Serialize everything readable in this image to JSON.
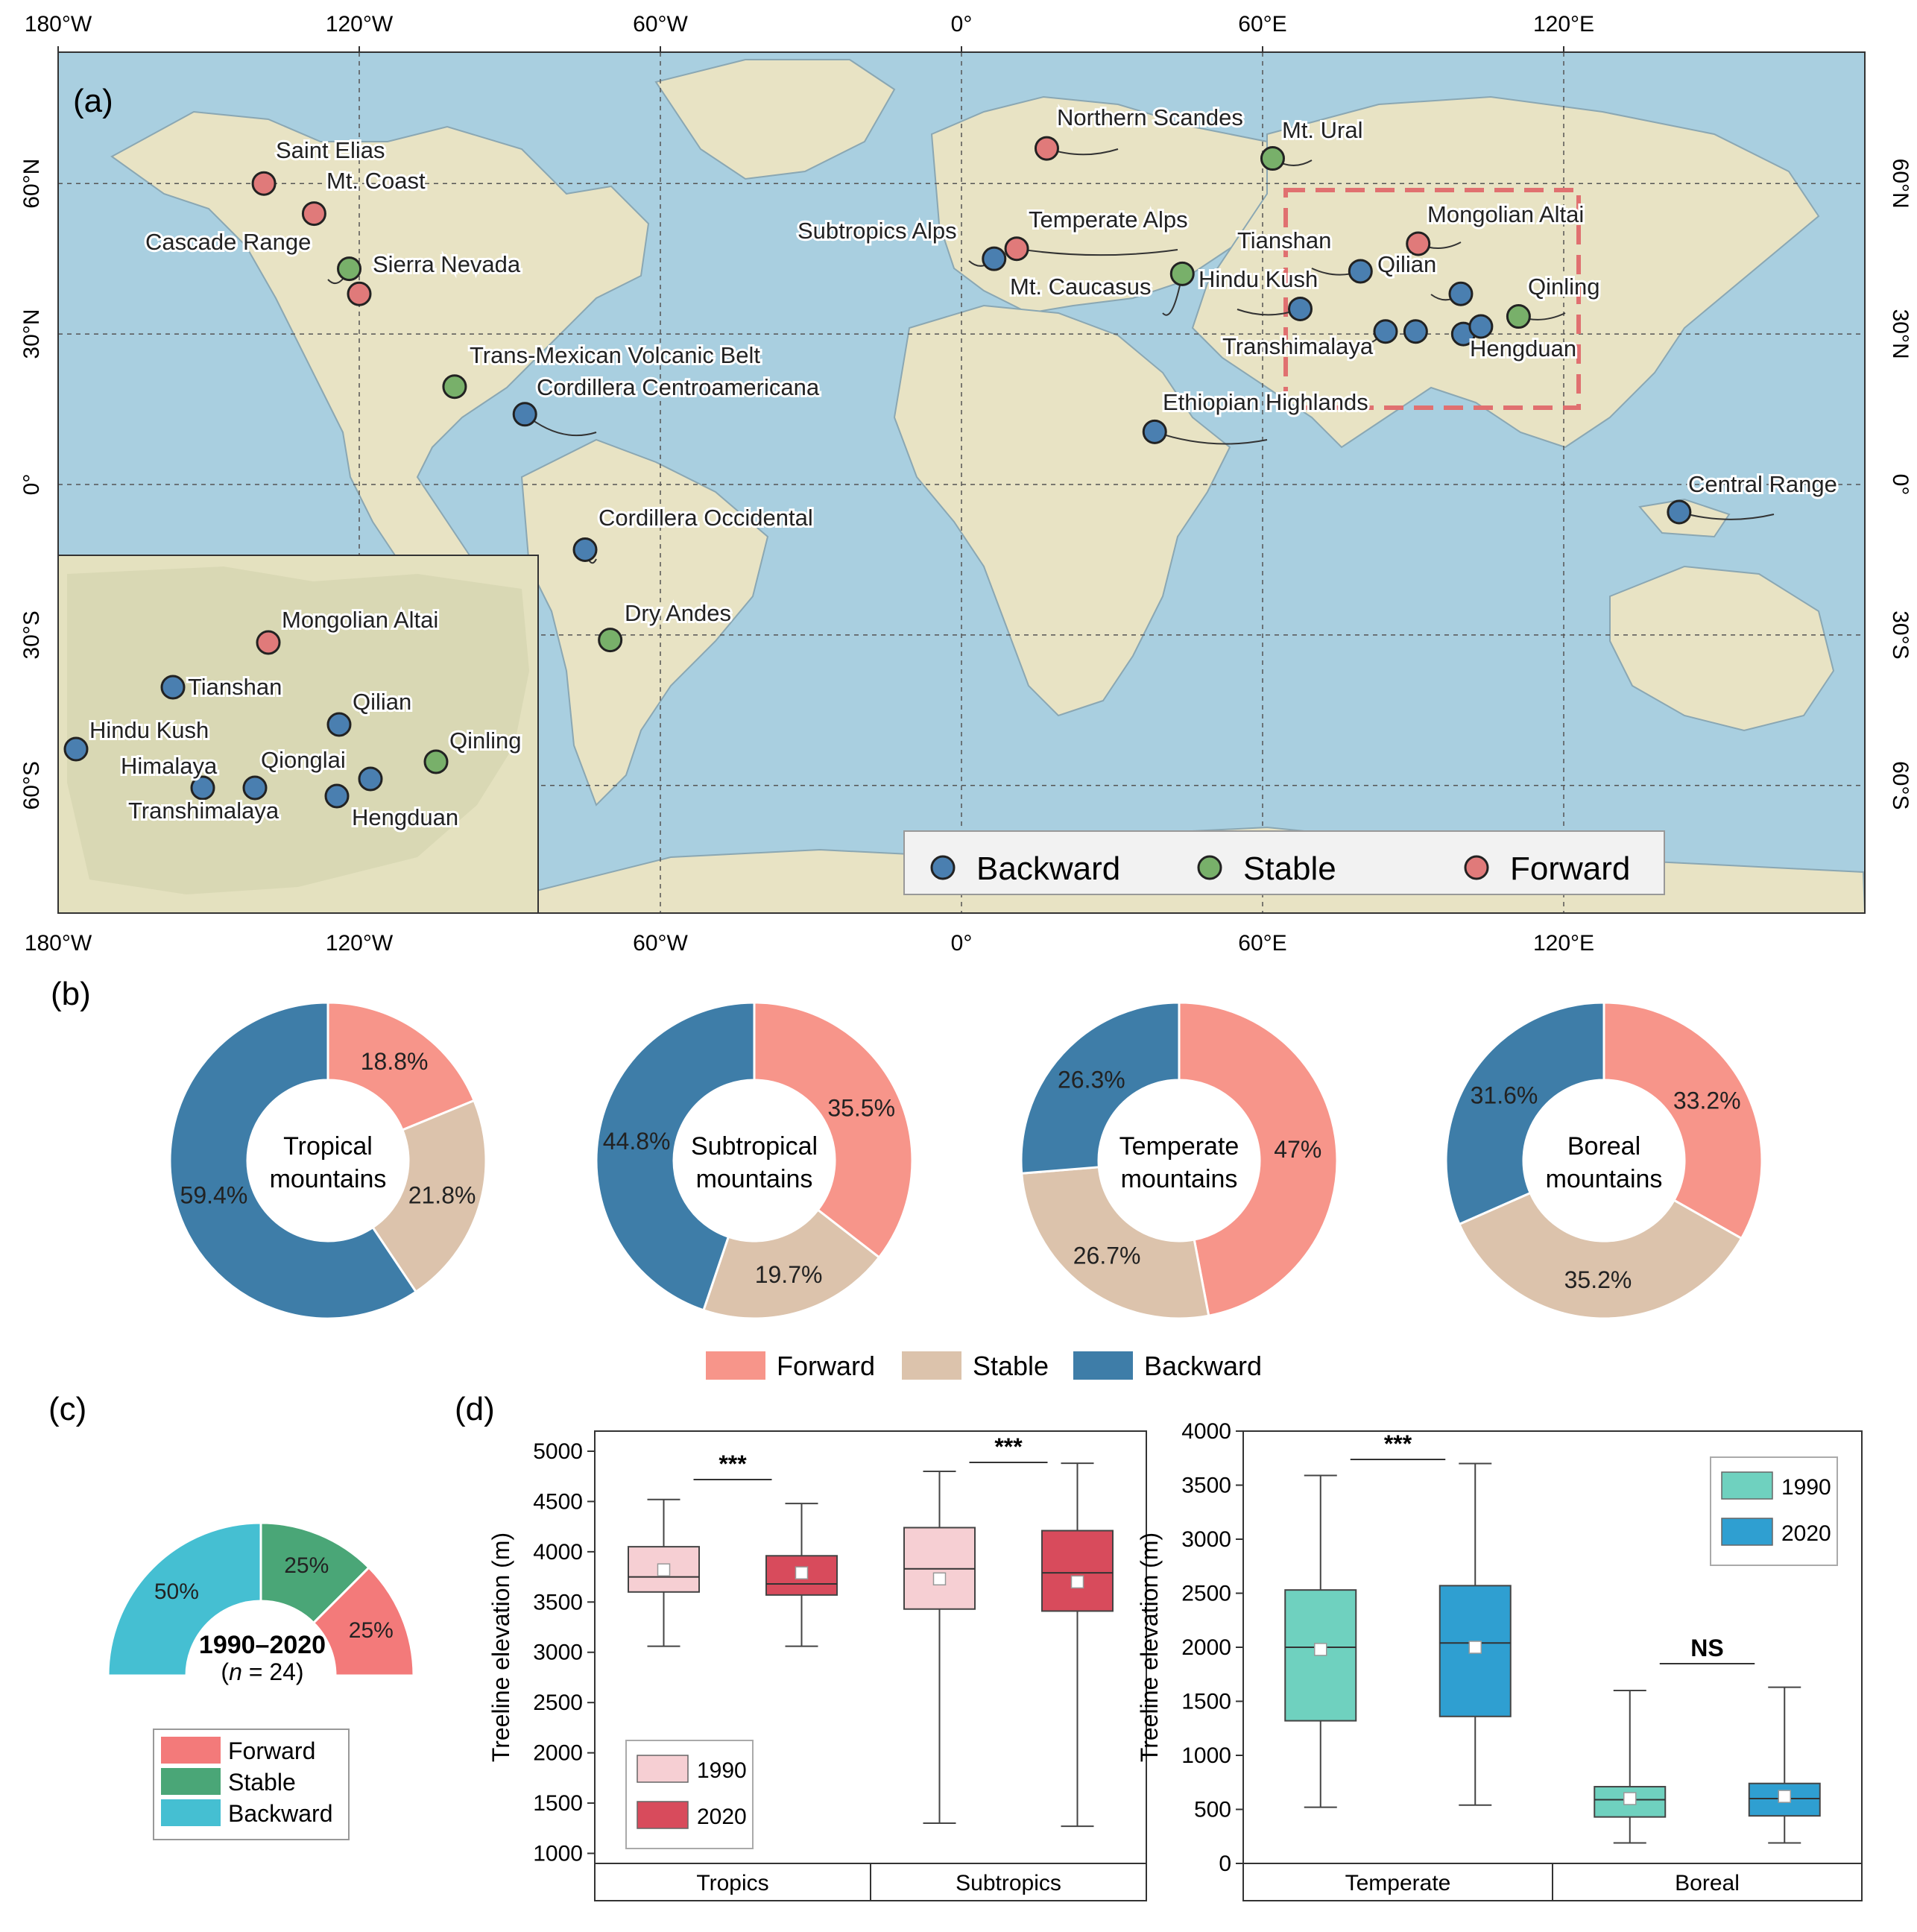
{
  "colors": {
    "backward": "#4a7fb0",
    "stable": "#78b06a",
    "forward": "#e07a7a",
    "ocean": "#a9cfe0",
    "land": "#e8e3c4",
    "pie_forward": "#f7958a",
    "pie_stable": "#dcc3ac",
    "pie_backward": "#3e7da8",
    "c_forward": "#f37a7a",
    "c_stable": "#4aa677",
    "c_backward": "#45bfd2",
    "box_1990_left": "#f6cfd3",
    "box_2020_left": "#d84b5c",
    "box_1990_right": "#6fd1bf",
    "box_2020_right": "#2f9fd1"
  },
  "panel_a": {
    "label": "(a)",
    "top_ticks": [
      "180°W",
      "120°W",
      "60°W",
      "0°",
      "60°E",
      "120°E"
    ],
    "bottom_ticks": [
      "180°W",
      "120°W",
      "60°W",
      "0°",
      "60°E",
      "120°E"
    ],
    "left_ticks": [
      "60°N",
      "30°N",
      "0°",
      "30°S",
      "60°S"
    ],
    "right_ticks": [
      "60°N",
      "30°N",
      "0°",
      "30°S",
      "60°S"
    ],
    "legend": [
      "Backward",
      "Stable",
      "Forward"
    ],
    "sites": [
      {
        "name": "Saint Elias",
        "status": "forward",
        "lon": -139,
        "lat": 60
      },
      {
        "name": "Mt. Coast",
        "status": "forward",
        "lon": -129,
        "lat": 54
      },
      {
        "name": "Cascade Range",
        "status": "stable",
        "lon": -122,
        "lat": 43
      },
      {
        "name": "Sierra Nevada",
        "status": "forward",
        "lon": -120,
        "lat": 38
      },
      {
        "name": "Trans-Mexican Volcanic Belt",
        "status": "stable",
        "lon": -101,
        "lat": 19.5
      },
      {
        "name": "Cordillera Centroamericana",
        "status": "backward",
        "lon": -87,
        "lat": 14
      },
      {
        "name": "Cordillera Occidental",
        "status": "backward",
        "lon": -75,
        "lat": -13
      },
      {
        "name": "Dry Andes",
        "status": "stable",
        "lon": -70,
        "lat": -31
      },
      {
        "name": "Northern Scandes",
        "status": "forward",
        "lon": 17,
        "lat": 67
      },
      {
        "name": "Mt. Ural",
        "status": "stable",
        "lon": 62,
        "lat": 65
      },
      {
        "name": "Subtropics Alps",
        "status": "backward",
        "lon": 6.5,
        "lat": 45
      },
      {
        "name": "Temperate Alps",
        "status": "forward",
        "lon": 11,
        "lat": 47
      },
      {
        "name": "Mt. Caucasus",
        "status": "stable",
        "lon": 44,
        "lat": 42
      },
      {
        "name": "Ethiopian Highlands",
        "status": "backward",
        "lon": 38.5,
        "lat": 10.5
      },
      {
        "name": "Tianshan",
        "status": "backward",
        "lon": 79.5,
        "lat": 42.5
      },
      {
        "name": "Mongolian Altai",
        "status": "forward",
        "lon": 91,
        "lat": 48
      },
      {
        "name": "Qilian",
        "status": "backward",
        "lon": 99.5,
        "lat": 38
      },
      {
        "name": "Hindu Kush",
        "status": "backward",
        "lon": 67.5,
        "lat": 35
      },
      {
        "name": "Qinling",
        "status": "stable",
        "lon": 111,
        "lat": 33.5
      },
      {
        "name": "Transhimalaya",
        "status": "backward",
        "lon": 84.5,
        "lat": 30.5
      },
      {
        "name": "Himalaya",
        "status": "backward",
        "lon": 90.5,
        "lat": 30.5
      },
      {
        "name": "Hengduan",
        "status": "backward",
        "lon": 100,
        "lat": 30
      },
      {
        "name": "Qionglai",
        "status": "backward",
        "lon": 103.5,
        "lat": 31.5
      },
      {
        "name": "Central Range",
        "status": "backward",
        "lon": 143,
        "lat": -5.5
      }
    ],
    "inset_sites": [
      {
        "name": "Mongolian Altai",
        "status": "forward"
      },
      {
        "name": "Tianshan",
        "status": "backward"
      },
      {
        "name": "Qilian",
        "status": "backward"
      },
      {
        "name": "Hindu Kush",
        "status": "backward"
      },
      {
        "name": "Qinling",
        "status": "stable"
      },
      {
        "name": "Himalaya",
        "status": "backward"
      },
      {
        "name": "Qionglai",
        "status": "backward"
      },
      {
        "name": "Transhimalaya",
        "status": "backward"
      },
      {
        "name": "Hengduan",
        "status": "backward"
      }
    ]
  },
  "chart_data": [
    {
      "type": "pie",
      "panel": "(b)",
      "charts": [
        {
          "center": [
            "Tropical",
            "mountains"
          ],
          "forward": 18.8,
          "stable": 21.8,
          "backward": 59.4,
          "labels": [
            "18.8%",
            "21.8%",
            "59.4%"
          ]
        },
        {
          "center": [
            "Subtropical",
            "mountains"
          ],
          "forward": 35.5,
          "stable": 19.7,
          "backward": 44.8,
          "labels": [
            "35.5%",
            "19.7%",
            "44.8%"
          ]
        },
        {
          "center": [
            "Temperate",
            "mountains"
          ],
          "forward": 47,
          "stable": 26.7,
          "backward": 26.3,
          "labels": [
            "47%",
            "26.7%",
            "26.3%"
          ]
        },
        {
          "center": [
            "Boreal",
            "mountains"
          ],
          "forward": 33.2,
          "stable": 35.2,
          "backward": 31.6,
          "labels": [
            "33.2%",
            "35.2%",
            "31.6%"
          ]
        }
      ],
      "legend": [
        "Forward",
        "Stable",
        "Backward"
      ]
    },
    {
      "type": "pie",
      "panel": "(c)",
      "shape": "semicircle donut",
      "slices": [
        {
          "name": "Backward",
          "value": 50,
          "label": "50%"
        },
        {
          "name": "Stable",
          "value": 25,
          "label": "25%"
        },
        {
          "name": "Forward",
          "value": 25,
          "label": "25%"
        }
      ],
      "center_title": "1990–2020",
      "center_sub_n": "n",
      "center_sub_rest": " = 24)",
      "center_sub_open": "(",
      "legend": [
        "Forward",
        "Stable",
        "Backward"
      ]
    },
    {
      "type": "box",
      "panel": "(d)",
      "ylabel": "Treeline elevation (m)",
      "ylim": [
        900,
        5200
      ],
      "yticks": [
        1000,
        1500,
        2000,
        2500,
        3000,
        3500,
        4000,
        4500,
        5000
      ],
      "groups": [
        "Tropics",
        "Subtropics"
      ],
      "legend": [
        "1990",
        "2020"
      ],
      "sig": [
        "***",
        "***"
      ],
      "boxes": [
        {
          "group": "Tropics",
          "year": "1990",
          "whislo": 3060,
          "q1": 3600,
          "med": 3750,
          "q3": 4050,
          "whishi": 4520,
          "mean": 3820
        },
        {
          "group": "Tropics",
          "year": "2020",
          "whislo": 3060,
          "q1": 3570,
          "med": 3680,
          "q3": 3960,
          "whishi": 4480,
          "mean": 3790
        },
        {
          "group": "Subtropics",
          "year": "1990",
          "whislo": 1300,
          "q1": 3430,
          "med": 3830,
          "q3": 4240,
          "whishi": 4800,
          "mean": 3730
        },
        {
          "group": "Subtropics",
          "year": "2020",
          "whislo": 1270,
          "q1": 3410,
          "med": 3790,
          "q3": 4210,
          "whishi": 4880,
          "mean": 3700
        }
      ]
    },
    {
      "type": "box",
      "panel": "(d)",
      "ylabel": "Treeline elevation (m)",
      "ylim": [
        0,
        4000
      ],
      "yticks": [
        0,
        500,
        1000,
        1500,
        2000,
        2500,
        3000,
        3500,
        4000
      ],
      "groups": [
        "Temperate",
        "Boreal"
      ],
      "legend": [
        "1990",
        "2020"
      ],
      "sig": [
        "***",
        "NS"
      ],
      "boxes": [
        {
          "group": "Temperate",
          "year": "1990",
          "whislo": 520,
          "q1": 1320,
          "med": 2000,
          "q3": 2530,
          "whishi": 3590,
          "mean": 1980
        },
        {
          "group": "Temperate",
          "year": "2020",
          "whislo": 540,
          "q1": 1360,
          "med": 2040,
          "q3": 2570,
          "whishi": 3700,
          "mean": 2000
        },
        {
          "group": "Boreal",
          "year": "1990",
          "whislo": 190,
          "q1": 430,
          "med": 590,
          "q3": 710,
          "whishi": 1600,
          "mean": 600
        },
        {
          "group": "Boreal",
          "year": "2020",
          "whislo": 190,
          "q1": 440,
          "med": 600,
          "q3": 740,
          "whishi": 1630,
          "mean": 620
        }
      ]
    }
  ]
}
